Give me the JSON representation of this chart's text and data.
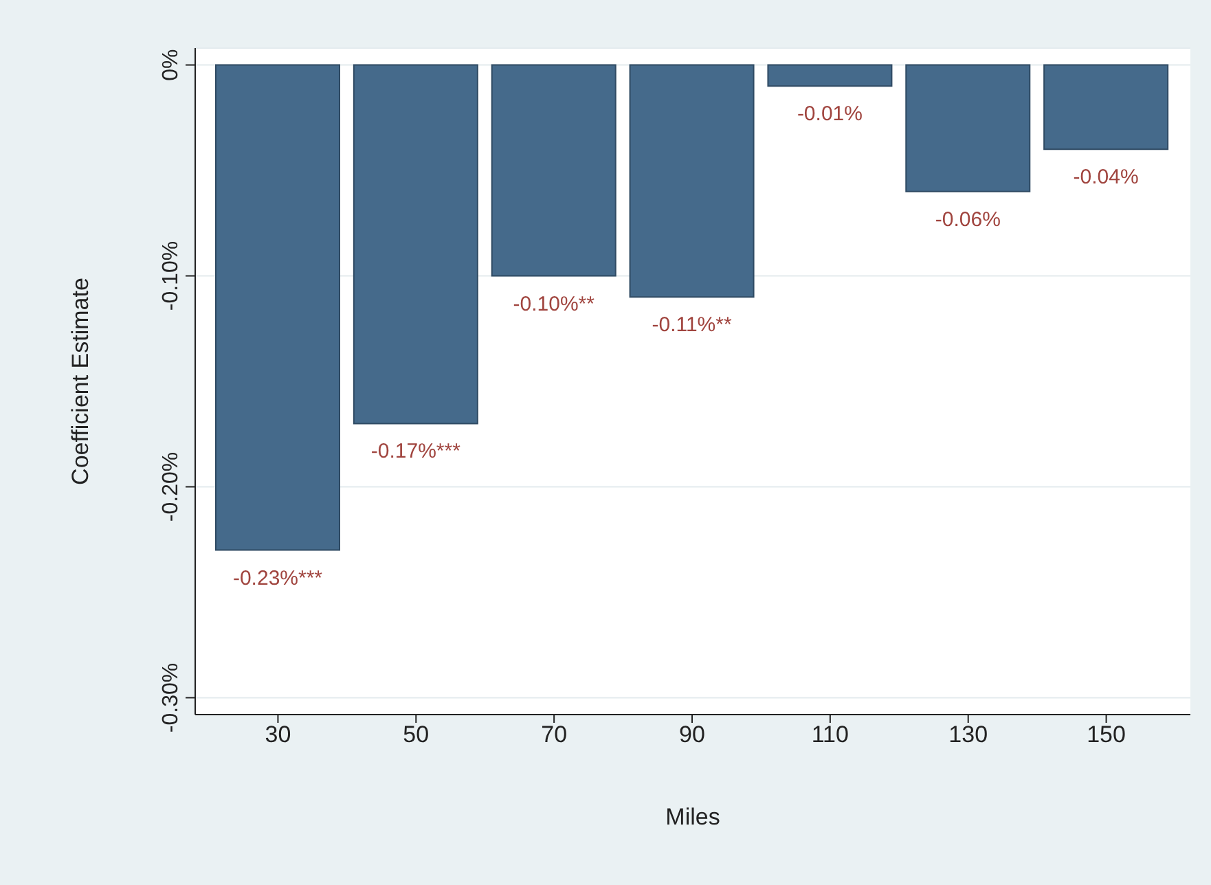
{
  "chart_data": {
    "type": "bar",
    "xlabel": "Miles",
    "ylabel": "Coefficient Estimate",
    "categories": [
      "30",
      "50",
      "70",
      "90",
      "110",
      "130",
      "150"
    ],
    "values": [
      -0.23,
      -0.17,
      -0.1,
      -0.11,
      -0.01,
      -0.06,
      -0.04
    ],
    "value_labels": [
      "-0.23%***",
      "-0.17%***",
      "-0.10%**",
      "-0.11%**",
      "-0.01%",
      "-0.06%",
      "-0.04%"
    ],
    "color": "#456a8b",
    "ylim": [
      -0.308,
      0.008
    ],
    "yticks": [
      {
        "value": 0,
        "label": "0%"
      },
      {
        "value": -0.1,
        "label": "-0.10%"
      },
      {
        "value": -0.2,
        "label": "-0.20%"
      },
      {
        "value": -0.3,
        "label": "-0.30%"
      }
    ],
    "grid": "y",
    "legend": false
  }
}
